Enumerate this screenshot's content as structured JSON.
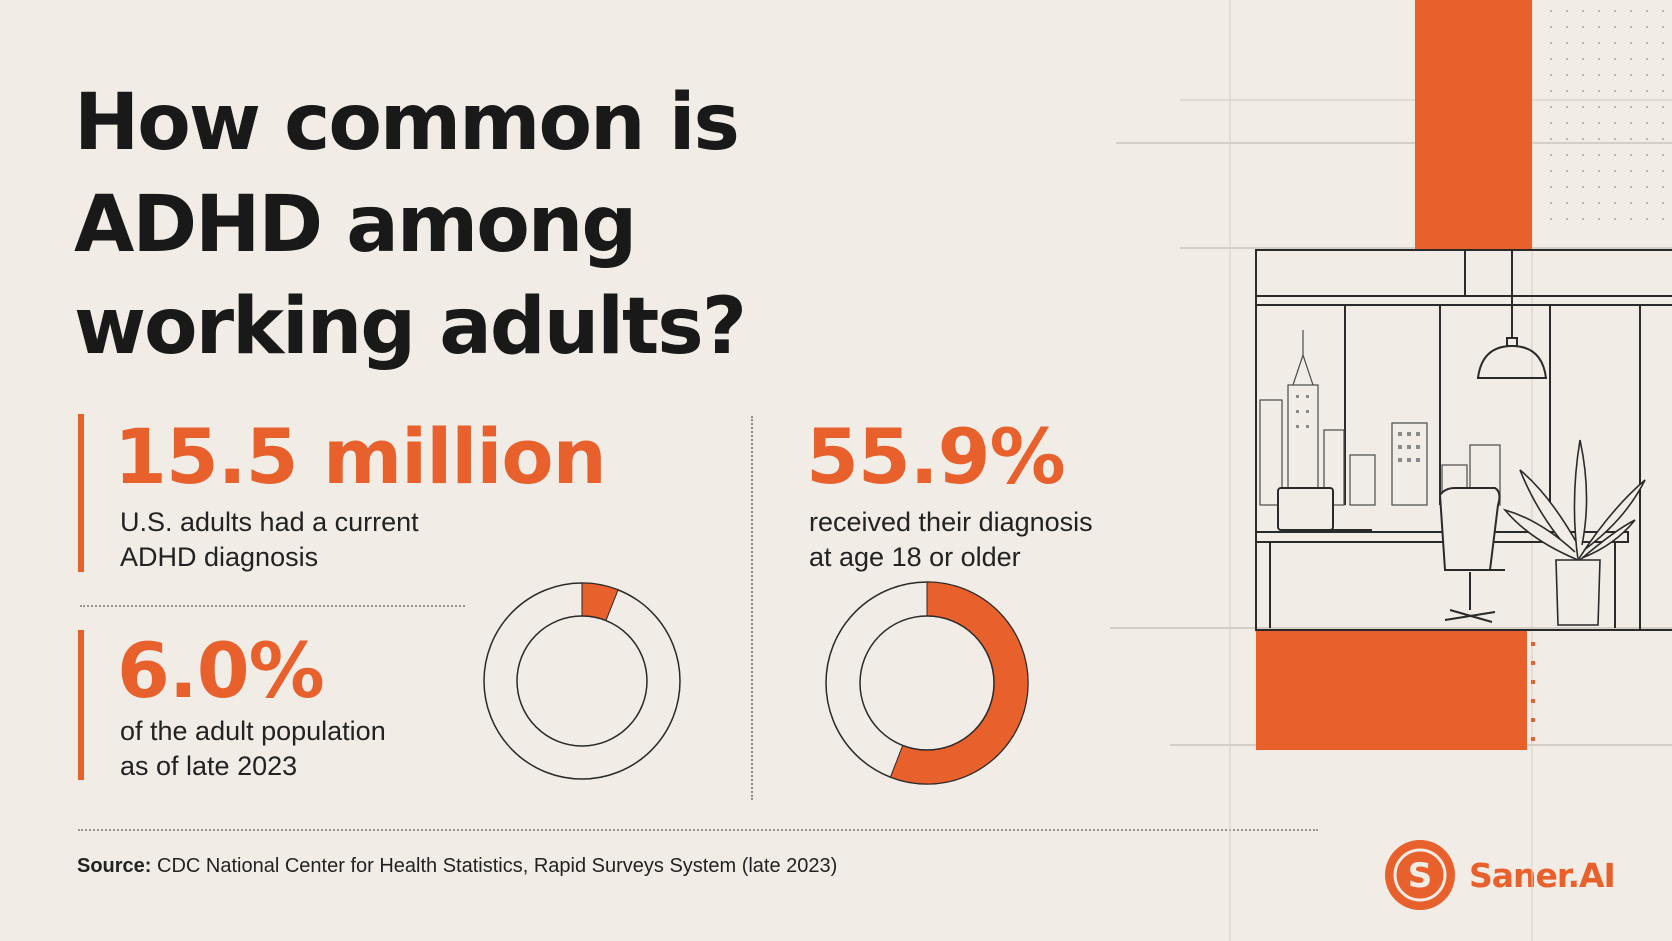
{
  "title_lines": [
    "How common is",
    "ADHD among",
    "working adults?"
  ],
  "stats": {
    "s1": {
      "value": "15.5 million",
      "lines": [
        "U.S. adults had a current",
        "ADHD diagnosis"
      ]
    },
    "s2": {
      "value": "6.0%",
      "lines": [
        "of the adult population",
        "as of late 2023"
      ]
    },
    "s3": {
      "value": "55.9%",
      "lines": [
        "received their diagnosis",
        "at age 18 or older"
      ]
    }
  },
  "chart_data": [
    {
      "type": "pie",
      "donut": true,
      "values": [
        6.0,
        94.0
      ],
      "colors": [
        "#e8602c",
        "#f1ede6"
      ]
    },
    {
      "type": "pie",
      "donut": true,
      "values": [
        55.9,
        44.1
      ],
      "colors": [
        "#e8602c",
        "#f1ede6"
      ]
    }
  ],
  "source": {
    "label": "Source:",
    "text": "CDC National Center for Health Statistics, Rapid Surveys System (late 2023)"
  },
  "brand": {
    "name": "Saner.AI",
    "logo_letter": "S",
    "color": "#e8602c"
  },
  "colors": {
    "accent": "#e8602c",
    "background": "#f1ede6",
    "ink": "#1c1c1c"
  }
}
